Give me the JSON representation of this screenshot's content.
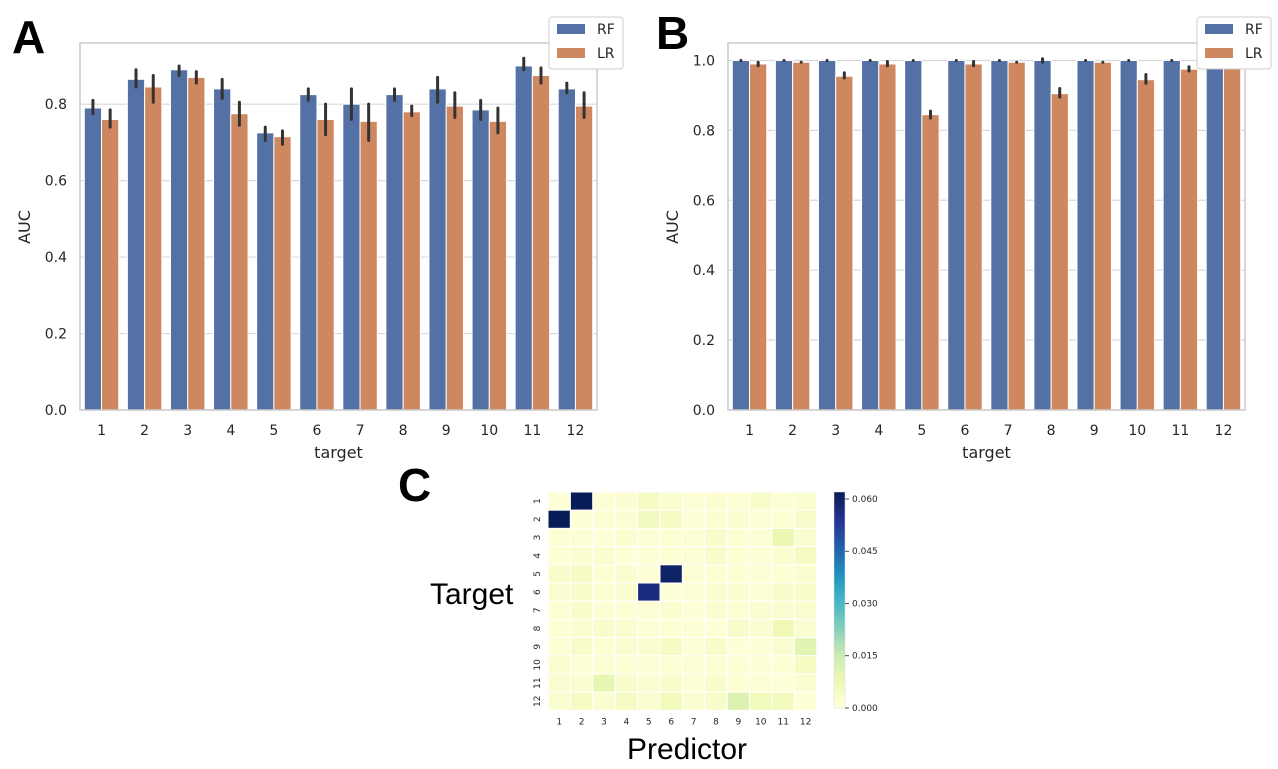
{
  "panels": {
    "a": "A",
    "b": "B",
    "c": "C"
  },
  "heatmap_labels": {
    "ylabel": "Target",
    "xlabel": "Predictor"
  },
  "colors": {
    "RF": "#5471a5",
    "LR": "#cf875f",
    "grid": "#d9d9d9",
    "spine": "#cccccc",
    "errbar": "#333333"
  },
  "chart_data": [
    {
      "type": "bar",
      "panel": "A",
      "categories": [
        "1",
        "2",
        "3",
        "4",
        "5",
        "6",
        "7",
        "8",
        "9",
        "10",
        "11",
        "12"
      ],
      "xlabel": "target",
      "ylabel": "AUC",
      "ylim": [
        0,
        0.96
      ],
      "yticks": [
        "0.0",
        "0.2",
        "0.4",
        "0.6",
        "0.8"
      ],
      "legend": "top-right",
      "grid": true,
      "series": [
        {
          "name": "RF",
          "color": "#5471a5",
          "values": [
            0.79,
            0.865,
            0.89,
            0.84,
            0.725,
            0.825,
            0.8,
            0.825,
            0.84,
            0.785,
            0.9,
            0.84
          ],
          "err_low": [
            0.775,
            0.845,
            0.875,
            0.815,
            0.705,
            0.81,
            0.76,
            0.81,
            0.805,
            0.76,
            0.89,
            0.83
          ],
          "err_high": [
            0.81,
            0.89,
            0.9,
            0.865,
            0.74,
            0.84,
            0.84,
            0.84,
            0.87,
            0.81,
            0.92,
            0.855
          ]
        },
        {
          "name": "LR",
          "color": "#cf875f",
          "values": [
            0.76,
            0.845,
            0.87,
            0.775,
            0.715,
            0.76,
            0.755,
            0.78,
            0.795,
            0.755,
            0.875,
            0.795
          ],
          "err_low": [
            0.74,
            0.805,
            0.855,
            0.745,
            0.695,
            0.72,
            0.705,
            0.77,
            0.765,
            0.725,
            0.855,
            0.765
          ],
          "err_high": [
            0.785,
            0.875,
            0.885,
            0.805,
            0.73,
            0.8,
            0.8,
            0.795,
            0.83,
            0.79,
            0.895,
            0.83
          ]
        }
      ]
    },
    {
      "type": "bar",
      "panel": "B",
      "categories": [
        "1",
        "2",
        "3",
        "4",
        "5",
        "6",
        "7",
        "8",
        "9",
        "10",
        "11",
        "12"
      ],
      "xlabel": "target",
      "ylabel": "AUC",
      "ylim": [
        0,
        1.05
      ],
      "yticks": [
        "0.0",
        "0.2",
        "0.4",
        "0.6",
        "0.8",
        "1.0"
      ],
      "legend": "top-right",
      "grid": true,
      "series": [
        {
          "name": "RF",
          "color": "#5471a5",
          "values": [
            1.0,
            1.0,
            1.0,
            1.0,
            1.0,
            1.0,
            1.0,
            1.0,
            1.0,
            1.0,
            1.0,
            1.0
          ],
          "err_low": [
            1.0,
            1.0,
            1.0,
            1.0,
            1.0,
            1.0,
            1.0,
            0.995,
            1.0,
            1.0,
            1.0,
            1.0
          ],
          "err_high": [
            1.0,
            1.0,
            1.0,
            1.0,
            1.0,
            1.0,
            1.0,
            1.005,
            1.0,
            1.0,
            1.0,
            1.0
          ]
        },
        {
          "name": "LR",
          "color": "#cf875f",
          "values": [
            0.99,
            0.995,
            0.955,
            0.99,
            0.845,
            0.99,
            0.995,
            0.905,
            0.995,
            0.945,
            0.975,
            0.995
          ],
          "err_low": [
            0.985,
            0.995,
            0.95,
            0.985,
            0.835,
            0.985,
            0.995,
            0.895,
            0.995,
            0.935,
            0.97,
            0.995
          ],
          "err_high": [
            0.995,
            0.995,
            0.965,
            0.997,
            0.855,
            0.997,
            0.995,
            0.92,
            0.995,
            0.96,
            0.982,
            0.995
          ]
        }
      ]
    },
    {
      "type": "heatmap",
      "panel": "C",
      "xlabel": "Predictor",
      "ylabel": "Target",
      "x": [
        "1",
        "2",
        "3",
        "4",
        "5",
        "6",
        "7",
        "8",
        "9",
        "10",
        "11",
        "12"
      ],
      "y": [
        "1",
        "2",
        "3",
        "4",
        "5",
        "6",
        "7",
        "8",
        "9",
        "10",
        "11",
        "12"
      ],
      "colormap": "YlGnBu",
      "vmin": 0.0,
      "vmax": 0.062,
      "colorbar_ticks": [
        "0.000",
        "0.015",
        "0.030",
        "0.045",
        "0.060"
      ],
      "values": [
        [
          0.0005,
          0.062,
          0.001,
          0.0015,
          0.004,
          0.002,
          0.001,
          0.0015,
          0.001,
          0.003,
          0.001,
          0.002
        ],
        [
          0.062,
          0.0005,
          0.001,
          0.0015,
          0.005,
          0.004,
          0.001,
          0.0015,
          0.002,
          0.001,
          0.001,
          0.003
        ],
        [
          0.001,
          0.001,
          0.0005,
          0.0015,
          0.001,
          0.001,
          0.001,
          0.003,
          0.001,
          0.001,
          0.008,
          0.002
        ],
        [
          0.001,
          0.002,
          0.002,
          0.0005,
          0.001,
          0.001,
          0.001,
          0.003,
          0.001,
          0.001,
          0.002,
          0.004
        ],
        [
          0.003,
          0.004,
          0.001,
          0.002,
          0.0005,
          0.06,
          0.001,
          0.001,
          0.001,
          0.001,
          0.001,
          0.002
        ],
        [
          0.002,
          0.003,
          0.001,
          0.002,
          0.057,
          0.0005,
          0.001,
          0.002,
          0.002,
          0.001,
          0.003,
          0.003
        ],
        [
          0.001,
          0.003,
          0.001,
          0.001,
          0.001,
          0.002,
          0.0005,
          0.002,
          0.001,
          0.002,
          0.002,
          0.002
        ],
        [
          0.001,
          0.002,
          0.003,
          0.002,
          0.001,
          0.001,
          0.001,
          0.0005,
          0.003,
          0.002,
          0.007,
          0.002
        ],
        [
          0.001,
          0.003,
          0.001,
          0.002,
          0.002,
          0.004,
          0.001,
          0.003,
          0.0005,
          0.001,
          0.002,
          0.01
        ],
        [
          0.002,
          0.001,
          0.001,
          0.001,
          0.001,
          0.001,
          0.001,
          0.001,
          0.001,
          0.0005,
          0.001,
          0.004
        ],
        [
          0.002,
          0.002,
          0.009,
          0.003,
          0.002,
          0.003,
          0.001,
          0.003,
          0.001,
          0.001,
          0.0005,
          0.002
        ],
        [
          0.002,
          0.004,
          0.002,
          0.004,
          0.002,
          0.006,
          0.002,
          0.003,
          0.011,
          0.006,
          0.005,
          0.0005
        ]
      ]
    }
  ]
}
